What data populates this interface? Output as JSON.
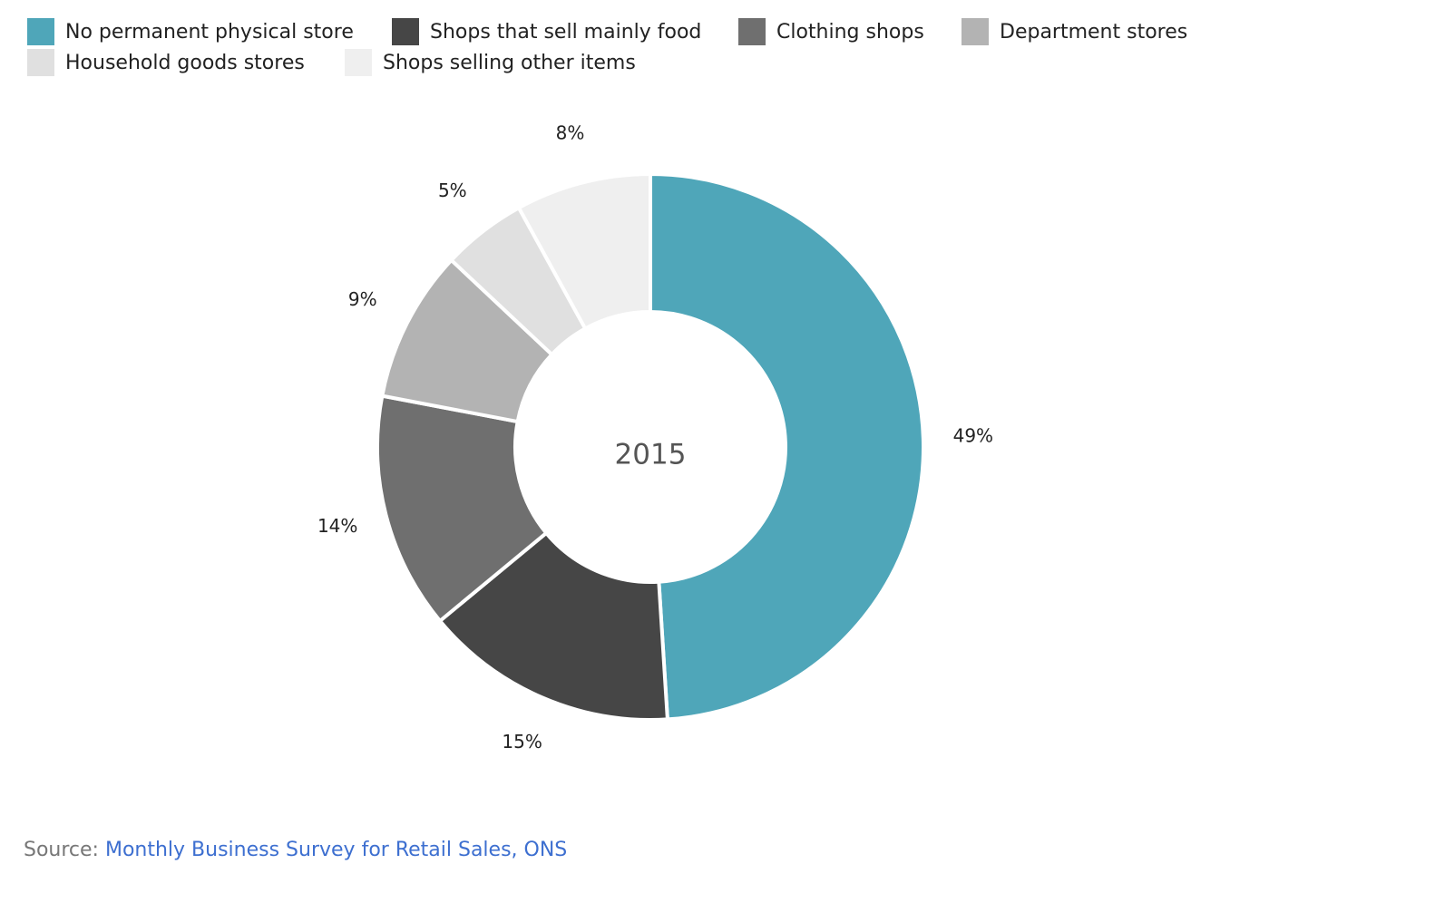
{
  "legend": [
    {
      "label": "No permanent physical store",
      "color": "#4FA6B9"
    },
    {
      "label": "Shops that sell mainly food",
      "color": "#464646"
    },
    {
      "label": "Clothing shops",
      "color": "#6F6F6F"
    },
    {
      "label": "Department stores",
      "color": "#B3B3B3"
    },
    {
      "label": "Household goods stores",
      "color": "#E0E0E0"
    },
    {
      "label": "Shops selling other items",
      "color": "#EFEFEF"
    }
  ],
  "chart_data": {
    "type": "pie",
    "donut": true,
    "center_label": "2015",
    "categories": [
      "No permanent physical store",
      "Shops that sell mainly food",
      "Clothing shops",
      "Department stores",
      "Household goods stores",
      "Shops selling other items"
    ],
    "values": [
      49,
      15,
      14,
      9,
      5,
      8
    ],
    "value_labels": [
      "49%",
      "15%",
      "14%",
      "9%",
      "5%",
      "8%"
    ],
    "colors": [
      "#4FA6B9",
      "#464646",
      "#6F6F6F",
      "#B3B3B3",
      "#E0E0E0",
      "#EFEFEF"
    ],
    "legend_position": "top-left"
  },
  "source": {
    "prefix": "Source: ",
    "link_text": "Monthly Business Survey for Retail Sales, ONS"
  }
}
